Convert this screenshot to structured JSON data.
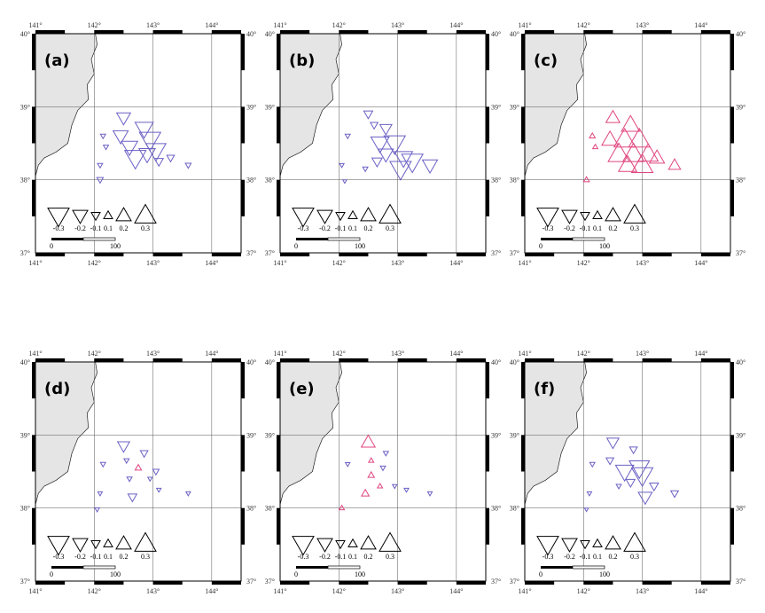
{
  "colors": {
    "land": "#e5e5e5",
    "negative": "#6a60c4",
    "positive": "#e0457e",
    "frame": "#000000",
    "grid": "#555555"
  },
  "axes": {
    "lon_ticks": [
      141,
      142,
      143,
      144
    ],
    "lat_ticks": [
      37,
      38,
      39,
      40
    ],
    "lon_tick_labels": [
      "141°",
      "142°",
      "143°",
      "144°"
    ],
    "lat_tick_labels": [
      "37°",
      "38°",
      "39°",
      "40°"
    ]
  },
  "legend": {
    "values": [
      -0.3,
      -0.2,
      -0.1,
      0.1,
      0.2,
      0.3
    ],
    "labels": [
      "-0.3",
      "-0.2",
      "-0.1",
      "0.1",
      "0.2",
      "0.3"
    ],
    "scale_labels": [
      "0",
      "100"
    ]
  },
  "chart_data": [
    {
      "type": "scatter",
      "panel": "(a)",
      "points": [
        {
          "lon": 142.5,
          "lat": 38.85,
          "v": -0.18
        },
        {
          "lon": 142.85,
          "lat": 38.7,
          "v": -0.25
        },
        {
          "lon": 142.45,
          "lat": 38.6,
          "v": -0.2
        },
        {
          "lon": 142.95,
          "lat": 38.55,
          "v": -0.3
        },
        {
          "lon": 142.6,
          "lat": 38.45,
          "v": -0.22
        },
        {
          "lon": 143.05,
          "lat": 38.4,
          "v": -0.28
        },
        {
          "lon": 142.7,
          "lat": 38.3,
          "v": -0.3
        },
        {
          "lon": 142.9,
          "lat": 38.35,
          "v": -0.22
        },
        {
          "lon": 143.1,
          "lat": 38.25,
          "v": -0.1
        },
        {
          "lon": 143.3,
          "lat": 38.3,
          "v": -0.08
        },
        {
          "lon": 143.6,
          "lat": 38.2,
          "v": -0.05
        },
        {
          "lon": 142.15,
          "lat": 38.6,
          "v": -0.04
        },
        {
          "lon": 142.2,
          "lat": 38.45,
          "v": -0.04
        },
        {
          "lon": 142.1,
          "lat": 38.2,
          "v": -0.04
        },
        {
          "lon": 142.1,
          "lat": 38.0,
          "v": -0.06
        }
      ]
    },
    {
      "type": "scatter",
      "panel": "(b)",
      "points": [
        {
          "lon": 142.5,
          "lat": 38.9,
          "v": -0.1
        },
        {
          "lon": 142.8,
          "lat": 38.7,
          "v": -0.15
        },
        {
          "lon": 142.6,
          "lat": 38.75,
          "v": -0.08
        },
        {
          "lon": 142.7,
          "lat": 38.5,
          "v": -0.25
        },
        {
          "lon": 142.95,
          "lat": 38.5,
          "v": -0.3
        },
        {
          "lon": 142.8,
          "lat": 38.35,
          "v": -0.2
        },
        {
          "lon": 143.1,
          "lat": 38.3,
          "v": -0.25
        },
        {
          "lon": 143.25,
          "lat": 38.25,
          "v": -0.3
        },
        {
          "lon": 143.05,
          "lat": 38.15,
          "v": -0.3
        },
        {
          "lon": 143.55,
          "lat": 38.2,
          "v": -0.2
        },
        {
          "lon": 142.65,
          "lat": 38.25,
          "v": -0.12
        },
        {
          "lon": 142.15,
          "lat": 38.6,
          "v": -0.04
        },
        {
          "lon": 142.05,
          "lat": 38.2,
          "v": -0.03
        },
        {
          "lon": 142.45,
          "lat": 38.15,
          "v": -0.04
        },
        {
          "lon": 142.1,
          "lat": 37.98,
          "v": -0.02
        }
      ]
    },
    {
      "type": "scatter",
      "panel": "(c)",
      "points": [
        {
          "lon": 142.5,
          "lat": 38.85,
          "v": 0.18
        },
        {
          "lon": 142.8,
          "lat": 38.75,
          "v": 0.25
        },
        {
          "lon": 142.45,
          "lat": 38.55,
          "v": 0.22
        },
        {
          "lon": 142.7,
          "lat": 38.55,
          "v": 0.3
        },
        {
          "lon": 142.95,
          "lat": 38.55,
          "v": 0.3
        },
        {
          "lon": 142.6,
          "lat": 38.35,
          "v": 0.3
        },
        {
          "lon": 142.85,
          "lat": 38.35,
          "v": 0.3
        },
        {
          "lon": 143.1,
          "lat": 38.35,
          "v": 0.28
        },
        {
          "lon": 143.0,
          "lat": 38.2,
          "v": 0.3
        },
        {
          "lon": 142.75,
          "lat": 38.2,
          "v": 0.25
        },
        {
          "lon": 143.25,
          "lat": 38.3,
          "v": 0.2
        },
        {
          "lon": 143.55,
          "lat": 38.2,
          "v": 0.15
        },
        {
          "lon": 142.15,
          "lat": 38.6,
          "v": 0.05
        },
        {
          "lon": 142.2,
          "lat": 38.45,
          "v": 0.04
        },
        {
          "lon": 142.05,
          "lat": 38.0,
          "v": 0.05
        }
      ]
    },
    {
      "type": "scatter",
      "panel": "(d)",
      "points": [
        {
          "lon": 142.5,
          "lat": 38.85,
          "v": -0.15
        },
        {
          "lon": 142.85,
          "lat": 38.75,
          "v": -0.08
        },
        {
          "lon": 142.55,
          "lat": 38.65,
          "v": -0.04
        },
        {
          "lon": 142.75,
          "lat": 38.55,
          "v": 0.06
        },
        {
          "lon": 142.6,
          "lat": 38.4,
          "v": -0.04
        },
        {
          "lon": 143.05,
          "lat": 38.5,
          "v": -0.06
        },
        {
          "lon": 142.95,
          "lat": 38.4,
          "v": -0.03
        },
        {
          "lon": 143.1,
          "lat": 38.25,
          "v": -0.03
        },
        {
          "lon": 143.6,
          "lat": 38.2,
          "v": -0.03
        },
        {
          "lon": 142.65,
          "lat": 38.15,
          "v": -0.1
        },
        {
          "lon": 142.15,
          "lat": 38.6,
          "v": -0.04
        },
        {
          "lon": 142.1,
          "lat": 38.2,
          "v": -0.03
        },
        {
          "lon": 142.05,
          "lat": 37.98,
          "v": -0.03
        }
      ]
    },
    {
      "type": "scatter",
      "panel": "(e)",
      "points": [
        {
          "lon": 142.5,
          "lat": 38.9,
          "v": 0.18
        },
        {
          "lon": 142.8,
          "lat": 38.75,
          "v": -0.04
        },
        {
          "lon": 142.55,
          "lat": 38.65,
          "v": 0.04
        },
        {
          "lon": 142.75,
          "lat": 38.55,
          "v": -0.04
        },
        {
          "lon": 142.55,
          "lat": 38.45,
          "v": 0.06
        },
        {
          "lon": 142.45,
          "lat": 38.2,
          "v": 0.08
        },
        {
          "lon": 142.7,
          "lat": 38.3,
          "v": 0.04
        },
        {
          "lon": 142.95,
          "lat": 38.3,
          "v": -0.03
        },
        {
          "lon": 143.15,
          "lat": 38.25,
          "v": -0.03
        },
        {
          "lon": 143.55,
          "lat": 38.2,
          "v": -0.03
        },
        {
          "lon": 142.15,
          "lat": 38.6,
          "v": -0.03
        },
        {
          "lon": 142.05,
          "lat": 38.0,
          "v": 0.04
        }
      ]
    },
    {
      "type": "scatter",
      "panel": "(f)",
      "points": [
        {
          "lon": 142.5,
          "lat": 38.9,
          "v": -0.15
        },
        {
          "lon": 142.85,
          "lat": 38.8,
          "v": -0.08
        },
        {
          "lon": 142.45,
          "lat": 38.65,
          "v": -0.08
        },
        {
          "lon": 142.7,
          "lat": 38.5,
          "v": -0.25
        },
        {
          "lon": 142.95,
          "lat": 38.55,
          "v": -0.28
        },
        {
          "lon": 143.0,
          "lat": 38.45,
          "v": -0.3
        },
        {
          "lon": 142.8,
          "lat": 38.35,
          "v": -0.1
        },
        {
          "lon": 143.2,
          "lat": 38.3,
          "v": -0.1
        },
        {
          "lon": 143.05,
          "lat": 38.15,
          "v": -0.18
        },
        {
          "lon": 143.55,
          "lat": 38.2,
          "v": -0.08
        },
        {
          "lon": 142.6,
          "lat": 38.3,
          "v": -0.04
        },
        {
          "lon": 142.15,
          "lat": 38.6,
          "v": -0.04
        },
        {
          "lon": 142.1,
          "lat": 38.2,
          "v": -0.03
        },
        {
          "lon": 142.05,
          "lat": 37.98,
          "v": -0.02
        }
      ]
    }
  ]
}
